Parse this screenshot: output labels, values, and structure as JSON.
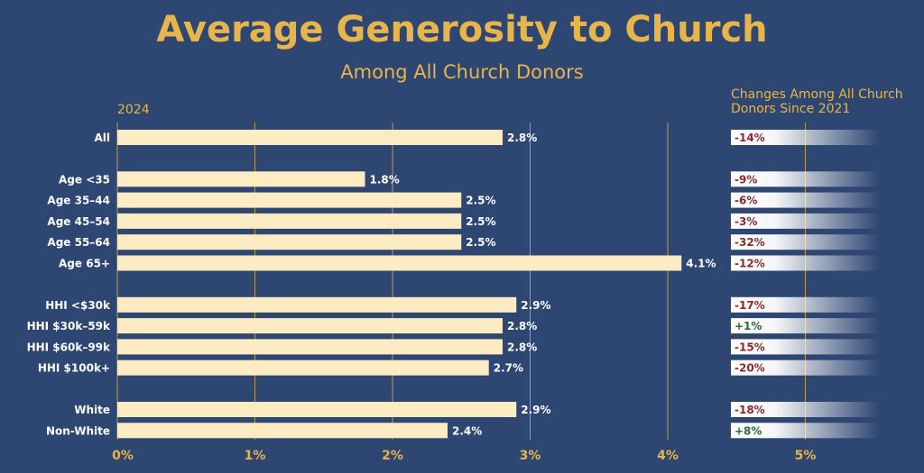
{
  "chart_data": {
    "type": "bar",
    "title": "Average Generosity to Church",
    "subtitle": "Among All Church Donors",
    "year_label": "2024",
    "changes_title_line1": "Changes Among All Church",
    "changes_title_line2": "Donors Since 2021",
    "categories": [
      "All",
      "Age <35",
      "Age 35–44",
      "Age 45–54",
      "Age 55–64",
      "Age 65+",
      "HHI <$30k",
      "HHI $30k–59k",
      "HHI $60k–99k",
      "HHI $100k+",
      "White",
      "Non-White"
    ],
    "groups": [
      1,
      2,
      2,
      2,
      2,
      2,
      3,
      3,
      3,
      3,
      4,
      4
    ],
    "values": [
      2.8,
      1.8,
      2.5,
      2.5,
      2.5,
      4.1,
      2.9,
      2.8,
      2.8,
      2.7,
      2.9,
      2.4
    ],
    "value_labels": [
      "2.8%",
      "1.8%",
      "2.5%",
      "2.5%",
      "2.5%",
      "4.1%",
      "2.9%",
      "2.8%",
      "2.8%",
      "2.7%",
      "2.9%",
      "2.4%"
    ],
    "changes": [
      "-14%",
      "-9%",
      "-6%",
      "-3%",
      "-32%",
      "-12%",
      "-17%",
      "+1%",
      "-15%",
      "-20%",
      "-18%",
      "+8%"
    ],
    "x_ticks": [
      "0%",
      "1%",
      "2%",
      "3%",
      "4%",
      "5%"
    ],
    "xlim": [
      0,
      5.5
    ],
    "grid": true
  },
  "colors": {
    "background": "#2e4672",
    "bar": "#fdebc4",
    "accent": "#e8b54a",
    "negative": "#8b2a2a",
    "positive": "#2d6a35"
  }
}
